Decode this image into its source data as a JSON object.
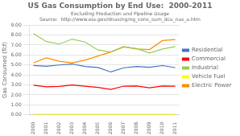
{
  "chart_data": {
    "type": "line",
    "title": "US Gas Consumption by End Use:  2000-2011",
    "subtitle": "Excluding Production and Pipeline Usage",
    "source": "Source:  http://www.eia.gov/dnav/ng/ng_cons_sum_dcu_nus_a.htm",
    "ylabel": "Gas Consumed (Tcf)",
    "x": [
      2000,
      2001,
      2002,
      2003,
      2004,
      2005,
      2006,
      2007,
      2008,
      2009,
      2010,
      2011
    ],
    "series": [
      {
        "name": "Residential",
        "color": "#4472C4",
        "values": [
          4.95,
          4.87,
          5.0,
          5.1,
          4.85,
          4.75,
          4.3,
          4.72,
          4.85,
          4.77,
          4.94,
          4.74
        ]
      },
      {
        "name": "Commercial",
        "color": "#FF0000",
        "values": [
          2.98,
          2.82,
          2.85,
          3.0,
          2.87,
          2.75,
          2.55,
          2.88,
          2.9,
          2.71,
          2.9,
          2.88
        ]
      },
      {
        "name": "Industrial",
        "color": "#92D050",
        "values": [
          8.15,
          7.35,
          7.1,
          7.6,
          7.3,
          6.5,
          6.3,
          6.8,
          6.65,
          6.2,
          6.6,
          6.85
        ]
      },
      {
        "name": "Vehicle Fuel",
        "color": "#FFFF00",
        "values": [
          0.08,
          0.07,
          0.07,
          0.07,
          0.07,
          0.07,
          0.07,
          0.07,
          0.07,
          0.07,
          0.07,
          0.07
        ]
      },
      {
        "name": "Electric Power",
        "color": "#FF8C00",
        "values": [
          5.22,
          5.72,
          5.37,
          5.22,
          5.5,
          5.9,
          6.3,
          6.85,
          6.6,
          6.55,
          7.45,
          7.55
        ]
      }
    ],
    "xlim": [
      1999.7,
      2011.3
    ],
    "xticks": [
      2000,
      2001,
      2002,
      2003,
      2004,
      2005,
      2006,
      2007,
      2008,
      2009,
      2010,
      2011
    ],
    "ylim": [
      0.0,
      9.0
    ],
    "yticks": [
      {
        "value": 0,
        "label": "0.00"
      },
      {
        "value": 1,
        "label": "1.00"
      },
      {
        "value": 2,
        "label": "2.00"
      },
      {
        "value": 3,
        "label": "3.00"
      },
      {
        "value": 4,
        "label": "4.00"
      },
      {
        "value": 5,
        "label": "5.00"
      },
      {
        "value": 6,
        "label": "6.00"
      },
      {
        "value": 7,
        "label": "7.00"
      },
      {
        "value": 8,
        "label": "8.00"
      },
      {
        "value": 9,
        "label": "9.00"
      }
    ],
    "grid": "y",
    "legend": "right"
  }
}
